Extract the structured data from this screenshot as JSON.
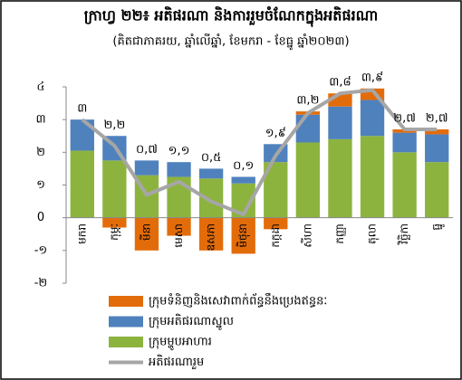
{
  "chart_data": {
    "type": "stacked-bar-line",
    "title": "ក្រាហ្វ ២២៖ អតិផរណា និងការរួមចំណែកក្នុងអតិផរណា",
    "subtitle": "(គិតជាភាគរយ, ឆ្នាំលើឆ្នាំ, ខែមករា - ខែធ្នូ ឆ្នាំ២០២៣)",
    "categories": [
      "មករា",
      "កុម្ភៈ",
      "មីនា",
      "មេសា",
      "ឧសភា",
      "មិថុនា",
      "កក្កដា",
      "សីហា",
      "កញ្ញា",
      "តុលា",
      "វិច្ឆិកា",
      "ធ្នូ"
    ],
    "ylim": [
      -2,
      4
    ],
    "yticks": [
      {
        "value": -2,
        "label": "-២"
      },
      {
        "value": -1,
        "label": "-១"
      },
      0,
      {
        "value": 1,
        "label": "១"
      },
      {
        "value": 2,
        "label": "២"
      },
      {
        "value": 3,
        "label": "៣"
      },
      {
        "value": 4,
        "label": "៤"
      }
    ],
    "series": [
      {
        "name": "ក្រុមទំនិញនិងសេវាពាក់ព័ន្ធនឹងប្រេងឥន្ធនៈ",
        "color": "#e36c0a",
        "kind": "bar",
        "values": [
          0,
          -0.3,
          -1.0,
          -0.55,
          -1.0,
          -1.1,
          -0.35,
          0.1,
          0.4,
          0.35,
          0.1,
          0.15
        ]
      },
      {
        "name": "ក្រុមអតិផរណាស្នូល",
        "color": "#4f81bd",
        "kind": "bar",
        "values": [
          0.95,
          0.75,
          0.45,
          0.45,
          0.3,
          0.2,
          0.55,
          0.85,
          1.0,
          1.1,
          0.6,
          0.85
        ]
      },
      {
        "name": "ក្រុមម្ហូបអាហារ",
        "color": "#8db33f",
        "kind": "bar",
        "values": [
          2.05,
          1.75,
          1.3,
          1.25,
          1.2,
          1.05,
          1.7,
          2.3,
          2.4,
          2.5,
          2.0,
          1.7
        ]
      },
      {
        "name": "អតិផរណារួម",
        "color": "#a6a6a6",
        "kind": "line",
        "values": [
          3,
          2.2,
          0.7,
          1.1,
          0.5,
          0.1,
          1.9,
          3.2,
          3.8,
          3.9,
          2.7,
          2.7
        ],
        "value_labels": [
          "៣",
          "២,២",
          "០,៧",
          "១,១",
          "០,៥",
          "០,១",
          "១,៩",
          "៣,២",
          "៣,៨",
          "៣,៩",
          "២,៧",
          "២,៧"
        ]
      }
    ]
  }
}
